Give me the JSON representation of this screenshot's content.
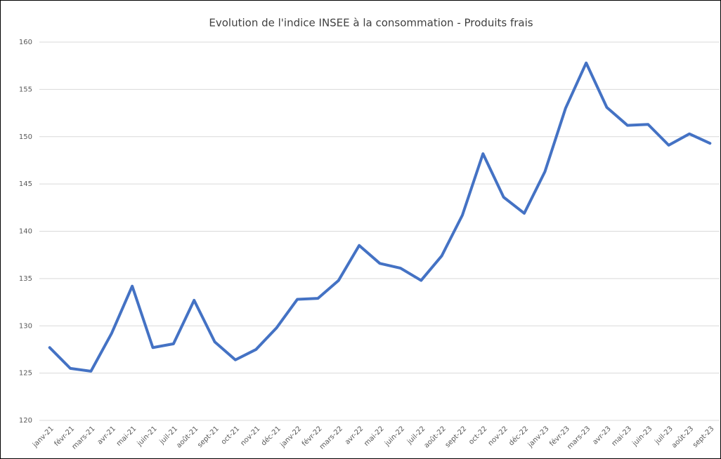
{
  "chart_data": {
    "type": "line",
    "title": "Evolution de l'indice INSEE à la consommation - Produits frais",
    "categories": [
      "janv-21",
      "févr-21",
      "mars-21",
      "avr-21",
      "mai-21",
      "juin-21",
      "juil-21",
      "août-21",
      "sept-21",
      "oct-21",
      "nov-21",
      "déc-21",
      "janv-22",
      "févr-22",
      "mars-22",
      "avr-22",
      "mai-22",
      "juin-22",
      "juil-22",
      "août-22",
      "sept-22",
      "oct-22",
      "nov-22",
      "déc-22",
      "janv-23",
      "févr-23",
      "mars-23",
      "avr-23",
      "mai-23",
      "juin-23",
      "juil-23",
      "août-23",
      "sept-23"
    ],
    "series": [
      {
        "name": "Produits frais",
        "color": "#4472c4",
        "values": [
          127.7,
          125.5,
          125.2,
          129.2,
          134.2,
          127.7,
          128.1,
          132.7,
          128.3,
          126.4,
          127.5,
          129.8,
          132.8,
          132.9,
          134.8,
          138.5,
          136.6,
          136.1,
          134.8,
          137.4,
          141.7,
          148.2,
          143.6,
          141.9,
          146.3,
          153.0,
          157.8,
          153.1,
          151.2,
          151.3,
          149.1,
          150.3,
          149.3
        ]
      }
    ],
    "ylim": [
      120,
      160
    ],
    "yticks": [
      120,
      125,
      130,
      135,
      140,
      145,
      150,
      155,
      160
    ],
    "grid": true
  }
}
